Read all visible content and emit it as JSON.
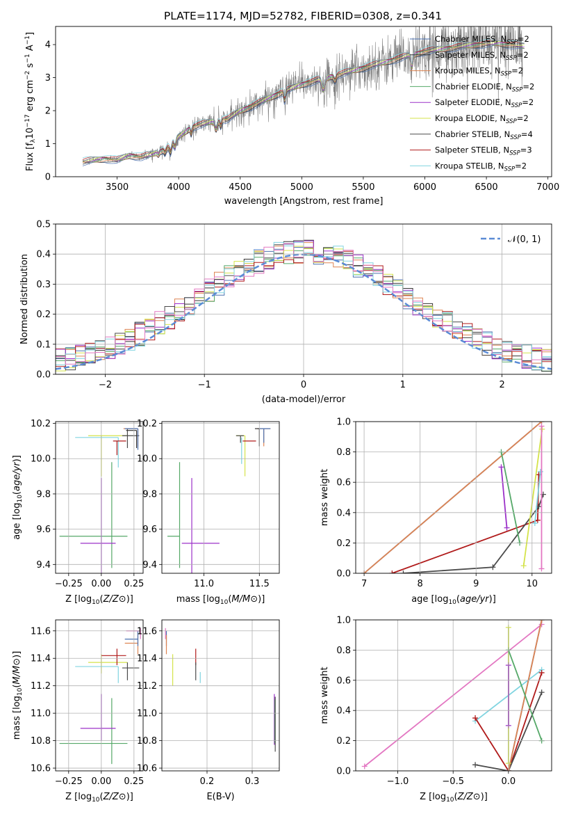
{
  "figure_title": "PLATE=1174, MJD=52782, FIBERID=0308, z=0.341",
  "colors": {
    "data": "#808080",
    "Chabrier MILES": "#4c72b0",
    "Salpeter MILES": "#333333",
    "Kroupa MILES": "#dd8452",
    "Chabrier ELODIE": "#55a868",
    "Salpeter ELODIE": "#9b30c8",
    "Kroupa ELODIE": "#d4e34a",
    "Chabrier STELIB": "#4a4a4a",
    "Salpeter STELIB": "#b01a1a",
    "Kroupa STELIB": "#80d4e0",
    "normal": "#5b8bd6",
    "pink": "#e377c2"
  },
  "chart_data": [
    {
      "type": "line",
      "id": "spectrum",
      "xlabel": "wavelength [Angstrom, rest frame]",
      "ylabel": "Flux [f_λ10^-17 erg cm^-2 s^-1 A^-1]",
      "xlim": [
        3000,
        7030
      ],
      "ylim": [
        0,
        4.55
      ],
      "xticks": [
        3500,
        4000,
        4500,
        5000,
        5500,
        6000,
        6500,
        7000
      ],
      "yticks": [
        0,
        1,
        2,
        3,
        4
      ],
      "grid": false,
      "legend_position": "top-right",
      "legend": [
        {
          "label": "Chabrier MILES, N",
          "sub": "SSP",
          "val": "=2"
        },
        {
          "label": "Salpeter MILES, N",
          "sub": "SSP",
          "val": "=2"
        },
        {
          "label": "Kroupa MILES, N",
          "sub": "SSP",
          "val": "=2"
        },
        {
          "label": "Chabrier ELODIE, N",
          "sub": "SSP",
          "val": "=2"
        },
        {
          "label": "Salpeter ELODIE, N",
          "sub": "SSP",
          "val": "=2"
        },
        {
          "label": "Kroupa ELODIE, N",
          "sub": "SSP",
          "val": "=2"
        },
        {
          "label": "Chabrier STELIB, N",
          "sub": "SSP",
          "val": "=4"
        },
        {
          "label": "Salpeter STELIB, N",
          "sub": "SSP",
          "val": "=3"
        },
        {
          "label": "Kroupa STELIB, N",
          "sub": "SSP",
          "val": "=2"
        }
      ],
      "continuum": {
        "x": [
          3220,
          3300,
          3400,
          3500,
          3600,
          3700,
          3800,
          3900,
          4000,
          4100,
          4200,
          4300,
          4400,
          4500,
          4600,
          4800,
          5000,
          5200,
          5400,
          5600,
          5800,
          6000,
          6200,
          6400,
          6600,
          6800
        ],
        "y": [
          0.45,
          0.5,
          0.55,
          0.5,
          0.65,
          0.6,
          0.7,
          0.85,
          1.2,
          1.5,
          1.6,
          1.7,
          1.75,
          2.0,
          2.15,
          2.5,
          2.8,
          3.0,
          3.2,
          3.4,
          3.6,
          3.8,
          3.9,
          4.0,
          4.05,
          3.95
        ]
      }
    },
    {
      "type": "histogram",
      "id": "residuals",
      "xlabel": "(data-model)/error",
      "ylabel": "Normed distribution",
      "xlim": [
        -2.5,
        2.5
      ],
      "ylim": [
        0,
        0.5
      ],
      "xticks": [
        -2,
        -1,
        0,
        1,
        2
      ],
      "yticks": [
        0.0,
        0.1,
        0.2,
        0.3,
        0.4,
        0.5
      ],
      "grid": true,
      "legend_position": "top-right",
      "legend_label": "N(0,1)",
      "bin_width": 0.1
    },
    {
      "type": "errorbar",
      "id": "age_vs_Z",
      "xlabel": "Z [log10(Z/Z⊙)]",
      "ylabel": "age [log10(age/yr)]",
      "xlim": [
        -0.35,
        0.32
      ],
      "ylim": [
        9.35,
        10.21
      ],
      "xticks": [
        -0.25,
        0.0,
        0.25
      ],
      "yticks": [
        9.4,
        9.6,
        9.8,
        10.0,
        10.2
      ],
      "points": [
        {
          "series": "Chabrier ELODIE",
          "x": 0.08,
          "y": 9.56,
          "xerr": [
            0.4,
            0.12
          ],
          "yerr": [
            0.18,
            0.42
          ]
        },
        {
          "series": "Salpeter ELODIE",
          "x": 0.0,
          "y": 9.52,
          "xerr": [
            0.16,
            0.11
          ],
          "yerr": [
            0.18,
            0.37
          ]
        },
        {
          "series": "Kroupa ELODIE",
          "x": 0.0,
          "y": 10.13,
          "xerr": [
            0.1,
            0.2
          ],
          "yerr": [
            0.23,
            0.0
          ]
        },
        {
          "series": "Kroupa STELIB",
          "x": 0.13,
          "y": 10.12,
          "xerr": [
            0.33,
            0.0
          ],
          "yerr": [
            0.17,
            0.0
          ]
        },
        {
          "series": "Salpeter STELIB",
          "x": 0.12,
          "y": 10.1,
          "xerr": [
            0.03,
            0.07
          ],
          "yerr": [
            0.08,
            0.0
          ]
        },
        {
          "series": "Chabrier STELIB",
          "x": 0.2,
          "y": 10.13,
          "xerr": [
            0.04,
            0.09
          ],
          "yerr": [
            0.07,
            0.04
          ]
        },
        {
          "series": "Kroupa MILES",
          "x": 0.28,
          "y": 10.17,
          "xerr": [
            0.11,
            0.0
          ],
          "yerr": [
            0.1,
            0.0
          ]
        },
        {
          "series": "Chabrier MILES",
          "x": 0.28,
          "y": 10.17,
          "xerr": [
            0.1,
            0.0
          ],
          "yerr": [
            0.12,
            0.0
          ]
        },
        {
          "series": "Salpeter MILES",
          "x": 0.27,
          "y": 10.16,
          "xerr": [
            0.08,
            0.0
          ],
          "yerr": [
            0.1,
            0.0
          ]
        }
      ]
    },
    {
      "type": "errorbar",
      "id": "age_vs_mass",
      "xlabel": "mass [log10(M/M⊙)]",
      "ylabel": "",
      "xlim": [
        10.62,
        11.68
      ],
      "ylim": [
        9.35,
        10.21
      ],
      "xticks": [
        11.0,
        11.5
      ],
      "yticks": [
        9.4,
        9.6,
        9.8,
        10.0,
        10.2
      ],
      "points": [
        {
          "series": "Chabrier ELODIE",
          "x": 10.78,
          "y": 9.56,
          "xerr": [
            0.11,
            0.0
          ],
          "yerr": [
            0.18,
            0.42
          ]
        },
        {
          "series": "Salpeter ELODIE",
          "x": 10.89,
          "y": 9.52,
          "xerr": [
            0.09,
            0.25
          ],
          "yerr": [
            0.17,
            0.37
          ]
        },
        {
          "series": "Kroupa ELODIE",
          "x": 11.37,
          "y": 10.13,
          "xerr": [
            0.08,
            0.0
          ],
          "yerr": [
            0.23,
            0.0
          ]
        },
        {
          "series": "Kroupa STELIB",
          "x": 11.34,
          "y": 10.12,
          "xerr": [
            0.0,
            0.0
          ],
          "yerr": [
            0.15,
            0.0
          ]
        },
        {
          "series": "Salpeter STELIB",
          "x": 11.42,
          "y": 10.1,
          "xerr": [
            0.07,
            0.05
          ],
          "yerr": [
            0.0,
            0.0
          ]
        },
        {
          "series": "Chabrier STELIB",
          "x": 11.33,
          "y": 10.13,
          "xerr": [
            0.04,
            0.03
          ],
          "yerr": [
            0.04,
            0.0
          ]
        },
        {
          "series": "Kroupa MILES",
          "x": 11.54,
          "y": 10.17,
          "xerr": [
            0.06,
            0.06
          ],
          "yerr": [
            0.1,
            0.0
          ]
        },
        {
          "series": "Chabrier MILES",
          "x": 11.54,
          "y": 10.17,
          "xerr": [
            0.05,
            0.06
          ],
          "yerr": [
            0.08,
            0.0
          ]
        },
        {
          "series": "Salpeter MILES",
          "x": 11.5,
          "y": 10.17,
          "xerr": [
            0.04,
            0.0
          ],
          "yerr": [
            0.1,
            0.0
          ]
        }
      ]
    },
    {
      "type": "line",
      "id": "mass_weight_vs_age",
      "xlabel": "age [log10(age/yr)]",
      "ylabel": "mass weight",
      "xlim": [
        6.85,
        10.35
      ],
      "ylim": [
        0,
        1.0
      ],
      "xticks": [
        7,
        8,
        9,
        10
      ],
      "yticks": [
        0.0,
        0.2,
        0.4,
        0.6,
        0.8,
        1.0
      ],
      "grid": true,
      "series": [
        {
          "name": "Chabrier MILES",
          "x": [
            7.0,
            10.17
          ],
          "y": [
            0.0,
            1.0
          ]
        },
        {
          "name": "Kroupa MILES",
          "x": [
            7.0,
            10.17
          ],
          "y": [
            0.0,
            1.0
          ]
        },
        {
          "name": "Salpeter STELIB",
          "x": [
            7.5,
            10.1,
            10.12
          ],
          "y": [
            0.0,
            0.35,
            0.65
          ]
        },
        {
          "name": "Chabrier STELIB",
          "x": [
            7.7,
            9.3,
            10.12,
            10.2
          ],
          "y": [
            0.0,
            0.04,
            0.44,
            0.52
          ]
        },
        {
          "name": "Chabrier ELODIE",
          "x": [
            9.45,
            9.78
          ],
          "y": [
            0.8,
            0.2
          ]
        },
        {
          "name": "Salpeter ELODIE",
          "x": [
            9.45,
            9.55
          ],
          "y": [
            0.7,
            0.3
          ]
        },
        {
          "name": "Kroupa ELODIE",
          "x": [
            9.85,
            10.18
          ],
          "y": [
            0.05,
            0.95
          ]
        },
        {
          "name": "Kroupa STELIB",
          "x": [
            10.05,
            10.15
          ],
          "y": [
            0.33,
            0.67
          ]
        },
        {
          "name": "pink",
          "x": [
            10.17,
            10.17
          ],
          "y": [
            0.03,
            0.97
          ]
        }
      ]
    },
    {
      "type": "errorbar",
      "id": "mass_vs_Z",
      "xlabel": "Z [log10(Z/Z⊙)]",
      "ylabel": "mass [log10(M/M⊙)]",
      "xlim": [
        -0.35,
        0.32
      ],
      "ylim": [
        10.58,
        11.68
      ],
      "xticks": [
        -0.25,
        0.0,
        0.25
      ],
      "yticks": [
        10.6,
        10.8,
        11.0,
        11.2,
        11.4,
        11.6
      ],
      "points": [
        {
          "series": "Chabrier ELODIE",
          "x": 0.08,
          "y": 10.78,
          "xerr": [
            0.4,
            0.12
          ],
          "yerr": [
            0.15,
            0.33
          ]
        },
        {
          "series": "Salpeter ELODIE",
          "x": 0.0,
          "y": 10.89,
          "xerr": [
            0.16,
            0.11
          ],
          "yerr": [
            0.09,
            0.25
          ]
        },
        {
          "series": "Kroupa ELODIE",
          "x": 0.0,
          "y": 11.37,
          "xerr": [
            0.1,
            0.2
          ],
          "yerr": [
            0.08,
            0.06
          ]
        },
        {
          "series": "Kroupa STELIB",
          "x": 0.13,
          "y": 11.34,
          "xerr": [
            0.33,
            0.0
          ],
          "yerr": [
            0.12,
            0.0
          ]
        },
        {
          "series": "Salpeter STELIB",
          "x": 0.12,
          "y": 11.42,
          "xerr": [
            0.12,
            0.07
          ],
          "yerr": [
            0.07,
            0.05
          ]
        },
        {
          "series": "Chabrier STELIB",
          "x": 0.2,
          "y": 11.33,
          "xerr": [
            0.04,
            0.09
          ],
          "yerr": [
            0.09,
            0.04
          ]
        },
        {
          "series": "Kroupa MILES",
          "x": 0.28,
          "y": 11.51,
          "xerr": [
            0.1,
            0.0
          ],
          "yerr": [
            0.08,
            0.06
          ]
        },
        {
          "series": "Chabrier MILES",
          "x": 0.28,
          "y": 11.54,
          "xerr": [
            0.1,
            0.0
          ],
          "yerr": [
            0.05,
            0.06
          ]
        },
        {
          "series": "pink",
          "x": 0.3,
          "y": 11.6,
          "xerr": [
            0.11,
            0.0
          ],
          "yerr": [
            0.06,
            0.02
          ]
        }
      ]
    },
    {
      "type": "errorbar",
      "id": "mass_vs_ebv",
      "xlabel": "E(B-V)",
      "ylabel": "",
      "xlim": [
        0.1,
        0.36
      ],
      "ylim": [
        10.58,
        11.68
      ],
      "xticks": [
        0.2,
        0.3
      ],
      "yticks": [
        10.6,
        10.8,
        11.0,
        11.2,
        11.4,
        11.6
      ],
      "points": [
        {
          "series": "pink",
          "x": 0.108,
          "y": 11.6,
          "xerr": [
            0.0,
            0.0
          ],
          "yerr": [
            0.06,
            0.02
          ]
        },
        {
          "series": "Chabrier MILES",
          "x": 0.11,
          "y": 11.54,
          "xerr": [
            0.0,
            0.0
          ],
          "yerr": [
            0.05,
            0.06
          ]
        },
        {
          "series": "Kroupa MILES",
          "x": 0.11,
          "y": 11.51,
          "xerr": [
            0.0,
            0.0
          ],
          "yerr": [
            0.08,
            0.06
          ]
        },
        {
          "series": "Kroupa ELODIE",
          "x": 0.124,
          "y": 11.37,
          "xerr": [
            0.0,
            0.0
          ],
          "yerr": [
            0.17,
            0.06
          ]
        },
        {
          "series": "Salpeter STELIB",
          "x": 0.175,
          "y": 11.42,
          "xerr": [
            0.0,
            0.0
          ],
          "yerr": [
            0.07,
            0.05
          ]
        },
        {
          "series": "Chabrier STELIB",
          "x": 0.175,
          "y": 11.33,
          "xerr": [
            0.0,
            0.0
          ],
          "yerr": [
            0.09,
            0.04
          ]
        },
        {
          "series": "Kroupa STELIB",
          "x": 0.185,
          "y": 11.3,
          "xerr": [
            0.0,
            0.0
          ],
          "yerr": [
            0.08,
            0.0
          ]
        },
        {
          "series": "Salpeter ELODIE",
          "x": 0.349,
          "y": 10.92,
          "xerr": [
            0.0,
            0.0
          ],
          "yerr": [
            0.15,
            0.22
          ]
        },
        {
          "series": "Chabrier ELODIE",
          "x": 0.35,
          "y": 10.9,
          "xerr": [
            0.0,
            0.0
          ],
          "yerr": [
            0.12,
            0.2
          ]
        },
        {
          "series": "Chabrier STELIB",
          "x": 0.351,
          "y": 10.88,
          "xerr": [
            0.0,
            0.0
          ],
          "yerr": [
            0.16,
            0.24
          ]
        }
      ]
    },
    {
      "type": "line",
      "id": "mass_weight_vs_Z",
      "xlabel": "Z [log10(Z/Z⊙)]",
      "ylabel": "mass weight",
      "xlim": [
        -1.38,
        0.39
      ],
      "ylim": [
        0,
        1.0
      ],
      "xticks": [
        -1.0,
        -0.5,
        0.0
      ],
      "yticks": [
        0.0,
        0.2,
        0.4,
        0.6,
        0.8,
        1.0
      ],
      "grid": true,
      "series": [
        {
          "name": "pink",
          "x": [
            -1.3,
            0.3
          ],
          "y": [
            0.03,
            0.97
          ]
        },
        {
          "name": "Kroupa STELIB",
          "x": [
            -0.3,
            0.3
          ],
          "y": [
            0.33,
            0.67
          ]
        },
        {
          "name": "Salpeter STELIB",
          "x": [
            -0.3,
            0.0,
            0.3
          ],
          "y": [
            0.35,
            0.0,
            0.65
          ]
        },
        {
          "name": "Chabrier STELIB",
          "x": [
            -0.3,
            0.0,
            0.3
          ],
          "y": [
            0.04,
            0.0,
            0.52
          ]
        },
        {
          "name": "Chabrier MILES",
          "x": [
            0.0,
            0.3
          ],
          "y": [
            0.0,
            1.0
          ]
        },
        {
          "name": "Kroupa MILES",
          "x": [
            0.0,
            0.3
          ],
          "y": [
            0.0,
            1.0
          ]
        },
        {
          "name": "Kroupa ELODIE",
          "x": [
            0.0,
            0.0
          ],
          "y": [
            0.05,
            0.95
          ]
        },
        {
          "name": "Chabrier ELODIE",
          "x": [
            0.0,
            0.3
          ],
          "y": [
            0.8,
            0.2
          ]
        },
        {
          "name": "Salpeter ELODIE",
          "x": [
            0.0,
            0.0
          ],
          "y": [
            0.3,
            0.7
          ]
        }
      ]
    }
  ]
}
